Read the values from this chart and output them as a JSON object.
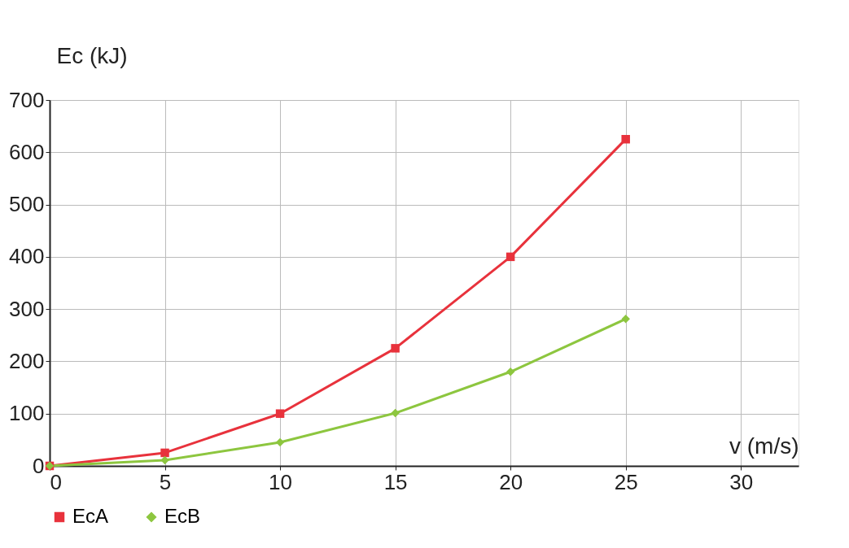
{
  "chart_data": {
    "type": "line",
    "xlabel": "v (m/s)",
    "ylabel": "Ec (kJ)",
    "x": [
      0,
      5,
      10,
      15,
      20,
      25
    ],
    "series": [
      {
        "name": "EcA",
        "color": "#e8323c",
        "marker": "square",
        "values": [
          0,
          25,
          100,
          225,
          400,
          625
        ]
      },
      {
        "name": "EcB",
        "color": "#8dc63f",
        "marker": "diamond",
        "values": [
          0,
          11,
          45,
          101,
          180,
          281
        ]
      }
    ],
    "xlim": [
      0,
      32.5
    ],
    "xticks": [
      0,
      5,
      10,
      15,
      20,
      25,
      30
    ],
    "ylim": [
      0,
      700
    ],
    "yticks": [
      0,
      100,
      200,
      300,
      400,
      500,
      600,
      700
    ],
    "grid": true,
    "legend": "bottom",
    "line_style": "solid"
  }
}
